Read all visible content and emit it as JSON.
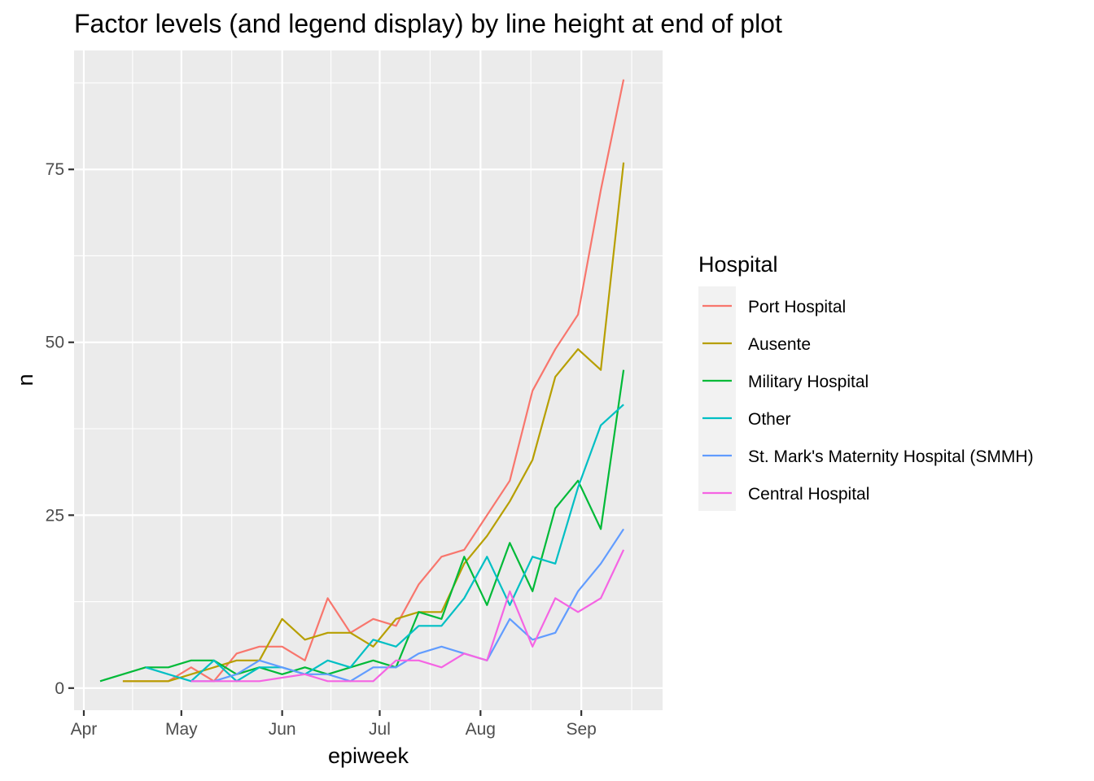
{
  "chart_data": {
    "type": "line",
    "title": "Factor levels (and legend display) by line height at end of plot",
    "xlabel": "epiweek",
    "ylabel": "n",
    "x_axis": {
      "type": "date",
      "range": [
        "2014-03-29",
        "2014-09-26"
      ],
      "ticks": [
        {
          "label": "Apr",
          "date": "2014-04-01"
        },
        {
          "label": "May",
          "date": "2014-05-01"
        },
        {
          "label": "Jun",
          "date": "2014-06-01"
        },
        {
          "label": "Jul",
          "date": "2014-07-01"
        },
        {
          "label": "Aug",
          "date": "2014-08-01"
        },
        {
          "label": "Sep",
          "date": "2014-09-01"
        }
      ]
    },
    "y_axis": {
      "range": [
        -3.2,
        92.2
      ],
      "ticks": [
        0,
        25,
        50,
        75
      ]
    },
    "grid": true,
    "panel_background": "#ebebeb",
    "legend": {
      "title": "Hospital",
      "position": "right"
    },
    "series": [
      {
        "name": "Port Hospital",
        "color": "#F8766D",
        "x": [
          "2014-04-13",
          "2014-04-20",
          "2014-04-27",
          "2014-05-04",
          "2014-05-11",
          "2014-05-18",
          "2014-05-25",
          "2014-06-01",
          "2014-06-08",
          "2014-06-15",
          "2014-06-22",
          "2014-06-29",
          "2014-07-06",
          "2014-07-13",
          "2014-07-20",
          "2014-07-27",
          "2014-08-03",
          "2014-08-10",
          "2014-08-17",
          "2014-08-24",
          "2014-08-31",
          "2014-09-07",
          "2014-09-14"
        ],
        "y": [
          1,
          1,
          1,
          3,
          1,
          5,
          6,
          6,
          4,
          13,
          8,
          10,
          9,
          15,
          19,
          20,
          25,
          30,
          43,
          49,
          54,
          72,
          88
        ]
      },
      {
        "name": "Ausente",
        "color": "#B79F00",
        "x": [
          "2014-04-13",
          "2014-04-20",
          "2014-04-27",
          "2014-05-04",
          "2014-05-11",
          "2014-05-18",
          "2014-05-25",
          "2014-06-01",
          "2014-06-08",
          "2014-06-15",
          "2014-06-22",
          "2014-06-29",
          "2014-07-06",
          "2014-07-13",
          "2014-07-20",
          "2014-07-27",
          "2014-08-03",
          "2014-08-10",
          "2014-08-17",
          "2014-08-24",
          "2014-08-31",
          "2014-09-07",
          "2014-09-14"
        ],
        "y": [
          1,
          1,
          1,
          2,
          3,
          4,
          4,
          10,
          7,
          8,
          8,
          6,
          10,
          11,
          11,
          18,
          22,
          27,
          33,
          45,
          49,
          46,
          76
        ]
      },
      {
        "name": "Military Hospital",
        "color": "#00BA38",
        "x": [
          "2014-04-06",
          "2014-04-13",
          "2014-04-20",
          "2014-04-27",
          "2014-05-04",
          "2014-05-11",
          "2014-05-18",
          "2014-05-25",
          "2014-06-01",
          "2014-06-08",
          "2014-06-15",
          "2014-06-22",
          "2014-06-29",
          "2014-07-06",
          "2014-07-13",
          "2014-07-20",
          "2014-07-27",
          "2014-08-03",
          "2014-08-10",
          "2014-08-17",
          "2014-08-24",
          "2014-08-31",
          "2014-09-07",
          "2014-09-14"
        ],
        "y": [
          1,
          2,
          3,
          3,
          4,
          4,
          2,
          3,
          2,
          3,
          2,
          3,
          4,
          3,
          11,
          10,
          19,
          12,
          21,
          14,
          26,
          30,
          23,
          46
        ]
      },
      {
        "name": "Other",
        "color": "#00BFC4",
        "x": [
          "2014-04-20",
          "2014-04-27",
          "2014-05-04",
          "2014-05-11",
          "2014-05-18",
          "2014-05-25",
          "2014-06-01",
          "2014-06-08",
          "2014-06-15",
          "2014-06-22",
          "2014-06-29",
          "2014-07-06",
          "2014-07-13",
          "2014-07-20",
          "2014-07-27",
          "2014-08-03",
          "2014-08-10",
          "2014-08-17",
          "2014-08-24",
          "2014-08-31",
          "2014-09-07",
          "2014-09-14"
        ],
        "y": [
          3,
          2,
          1,
          4,
          1,
          3,
          3,
          2,
          4,
          3,
          7,
          6,
          9,
          9,
          13,
          19,
          12,
          19,
          18,
          29,
          38,
          41
        ]
      },
      {
        "name": "St. Mark's Maternity Hospital (SMMH)",
        "color": "#619CFF",
        "x": [
          "2014-05-04",
          "2014-05-11",
          "2014-05-18",
          "2014-05-25",
          "2014-06-01",
          "2014-06-08",
          "2014-06-15",
          "2014-06-22",
          "2014-06-29",
          "2014-07-06",
          "2014-07-13",
          "2014-07-20",
          "2014-07-27",
          "2014-08-03",
          "2014-08-10",
          "2014-08-17",
          "2014-08-24",
          "2014-08-31",
          "2014-09-07",
          "2014-09-14"
        ],
        "y": [
          1,
          1,
          2,
          4,
          3,
          2,
          2,
          1,
          3,
          3,
          5,
          6,
          5,
          4,
          10,
          7,
          8,
          14,
          18,
          23
        ]
      },
      {
        "name": "Central Hospital",
        "color": "#F564E3",
        "x": [
          "2014-05-04",
          "2014-05-11",
          "2014-05-18",
          "2014-05-25",
          "2014-06-01",
          "2014-06-08",
          "2014-06-15",
          "2014-06-22",
          "2014-06-29",
          "2014-07-06",
          "2014-07-13",
          "2014-07-20",
          "2014-07-27",
          "2014-08-03",
          "2014-08-10",
          "2014-08-17",
          "2014-08-24",
          "2014-08-31",
          "2014-09-07",
          "2014-09-14"
        ],
        "y": [
          1,
          1,
          1,
          1,
          1.5,
          2,
          1,
          1,
          1,
          4,
          4,
          3,
          5,
          4,
          14,
          6,
          13,
          11,
          13,
          20
        ]
      }
    ]
  }
}
